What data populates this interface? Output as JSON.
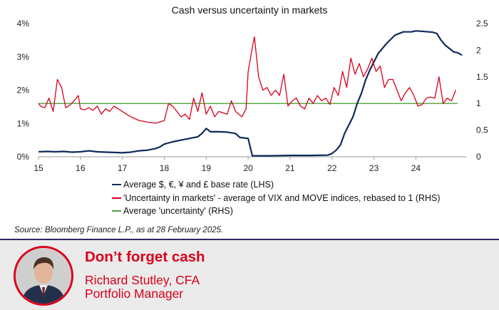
{
  "chart_data": {
    "type": "line",
    "title": "Cash versus uncertainty in markets",
    "x_ticks": [
      "15",
      "16",
      "17",
      "18",
      "19",
      "20",
      "21",
      "22",
      "23",
      "24"
    ],
    "x_tick_values": [
      2015,
      2016,
      2017,
      2018,
      2019,
      2020,
      2021,
      2022,
      2023,
      2024
    ],
    "xlim": [
      2015,
      2025.2
    ],
    "y_left": {
      "ticks": [
        "0%",
        "1%",
        "2%",
        "3%",
        "4%"
      ],
      "tick_values": [
        0,
        1,
        2,
        3,
        4
      ],
      "ylim": [
        0,
        4
      ]
    },
    "y_right": {
      "ticks": [
        "0",
        "0.5",
        "1",
        "1.5",
        "2",
        "2.5"
      ],
      "tick_values": [
        0,
        0.5,
        1,
        1.5,
        2,
        2.5
      ],
      "ylim": [
        0,
        2.5
      ]
    },
    "series": [
      {
        "name": "Average $, €, ¥ and £ base rate (LHS)",
        "axis": "left",
        "color": "#0d2b5a",
        "points": [
          [
            2015.0,
            0.15
          ],
          [
            2015.2,
            0.16
          ],
          [
            2015.4,
            0.15
          ],
          [
            2015.6,
            0.16
          ],
          [
            2015.8,
            0.14
          ],
          [
            2016.0,
            0.15
          ],
          [
            2016.2,
            0.18
          ],
          [
            2016.4,
            0.15
          ],
          [
            2016.6,
            0.14
          ],
          [
            2016.8,
            0.13
          ],
          [
            2017.0,
            0.12
          ],
          [
            2017.2,
            0.14
          ],
          [
            2017.4,
            0.18
          ],
          [
            2017.6,
            0.2
          ],
          [
            2017.8,
            0.25
          ],
          [
            2017.9,
            0.3
          ],
          [
            2018.0,
            0.38
          ],
          [
            2018.2,
            0.45
          ],
          [
            2018.4,
            0.5
          ],
          [
            2018.6,
            0.55
          ],
          [
            2018.8,
            0.6
          ],
          [
            2018.9,
            0.7
          ],
          [
            2019.0,
            0.85
          ],
          [
            2019.1,
            0.75
          ],
          [
            2019.3,
            0.75
          ],
          [
            2019.5,
            0.74
          ],
          [
            2019.7,
            0.7
          ],
          [
            2019.8,
            0.58
          ],
          [
            2020.0,
            0.55
          ],
          [
            2020.1,
            0.03
          ],
          [
            2020.5,
            0.03
          ],
          [
            2021.0,
            0.04
          ],
          [
            2021.5,
            0.04
          ],
          [
            2021.9,
            0.05
          ],
          [
            2022.0,
            0.1
          ],
          [
            2022.1,
            0.2
          ],
          [
            2022.2,
            0.35
          ],
          [
            2022.3,
            0.7
          ],
          [
            2022.5,
            1.2
          ],
          [
            2022.6,
            1.6
          ],
          [
            2022.7,
            1.9
          ],
          [
            2022.8,
            2.3
          ],
          [
            2022.9,
            2.6
          ],
          [
            2023.0,
            2.85
          ],
          [
            2023.1,
            3.1
          ],
          [
            2023.3,
            3.4
          ],
          [
            2023.5,
            3.65
          ],
          [
            2023.7,
            3.75
          ],
          [
            2023.9,
            3.75
          ],
          [
            2024.0,
            3.78
          ],
          [
            2024.2,
            3.76
          ],
          [
            2024.4,
            3.74
          ],
          [
            2024.5,
            3.7
          ],
          [
            2024.6,
            3.5
          ],
          [
            2024.7,
            3.35
          ],
          [
            2024.8,
            3.25
          ],
          [
            2024.9,
            3.15
          ],
          [
            2025.0,
            3.12
          ],
          [
            2025.1,
            3.05
          ]
        ]
      },
      {
        "name": "'Uncertainty in markets' - average of VIX and MOVE indices, rebased to 1 (RHS)",
        "axis": "right",
        "color": "#d9001b",
        "points": [
          [
            2015.0,
            1.0
          ],
          [
            2015.05,
            0.95
          ],
          [
            2015.15,
            0.92
          ],
          [
            2015.25,
            1.1
          ],
          [
            2015.35,
            0.85
          ],
          [
            2015.45,
            1.45
          ],
          [
            2015.55,
            1.3
          ],
          [
            2015.65,
            0.92
          ],
          [
            2015.75,
            0.97
          ],
          [
            2015.85,
            1.05
          ],
          [
            2015.95,
            1.15
          ],
          [
            2016.0,
            0.9
          ],
          [
            2016.1,
            0.88
          ],
          [
            2016.2,
            0.92
          ],
          [
            2016.3,
            0.87
          ],
          [
            2016.4,
            0.95
          ],
          [
            2016.5,
            0.8
          ],
          [
            2016.6,
            0.9
          ],
          [
            2016.7,
            0.85
          ],
          [
            2016.8,
            0.95
          ],
          [
            2016.9,
            0.9
          ],
          [
            2017.0,
            0.85
          ],
          [
            2017.2,
            0.75
          ],
          [
            2017.4,
            0.68
          ],
          [
            2017.6,
            0.65
          ],
          [
            2017.8,
            0.63
          ],
          [
            2018.0,
            0.68
          ],
          [
            2018.1,
            1.0
          ],
          [
            2018.2,
            0.95
          ],
          [
            2018.3,
            0.85
          ],
          [
            2018.4,
            0.75
          ],
          [
            2018.5,
            0.8
          ],
          [
            2018.6,
            0.7
          ],
          [
            2018.7,
            1.1
          ],
          [
            2018.8,
            0.85
          ],
          [
            2018.9,
            1.2
          ],
          [
            2019.0,
            0.8
          ],
          [
            2019.1,
            0.95
          ],
          [
            2019.2,
            0.75
          ],
          [
            2019.3,
            0.85
          ],
          [
            2019.5,
            0.8
          ],
          [
            2019.6,
            1.05
          ],
          [
            2019.7,
            0.85
          ],
          [
            2019.85,
            0.75
          ],
          [
            2019.95,
            0.9
          ],
          [
            2020.0,
            1.6
          ],
          [
            2020.1,
            2.05
          ],
          [
            2020.15,
            2.25
          ],
          [
            2020.25,
            1.5
          ],
          [
            2020.35,
            1.25
          ],
          [
            2020.45,
            1.3
          ],
          [
            2020.55,
            1.15
          ],
          [
            2020.65,
            1.25
          ],
          [
            2020.75,
            1.15
          ],
          [
            2020.85,
            1.55
          ],
          [
            2020.95,
            0.95
          ],
          [
            2021.05,
            1.05
          ],
          [
            2021.15,
            1.1
          ],
          [
            2021.25,
            0.95
          ],
          [
            2021.35,
            0.9
          ],
          [
            2021.45,
            1.1
          ],
          [
            2021.55,
            1.0
          ],
          [
            2021.65,
            1.15
          ],
          [
            2021.75,
            1.05
          ],
          [
            2021.85,
            1.1
          ],
          [
            2021.95,
            0.98
          ],
          [
            2022.05,
            1.3
          ],
          [
            2022.15,
            1.15
          ],
          [
            2022.25,
            1.6
          ],
          [
            2022.35,
            1.3
          ],
          [
            2022.45,
            1.85
          ],
          [
            2022.55,
            1.55
          ],
          [
            2022.65,
            1.75
          ],
          [
            2022.75,
            1.5
          ],
          [
            2022.85,
            1.65
          ],
          [
            2022.95,
            1.85
          ],
          [
            2023.05,
            1.6
          ],
          [
            2023.15,
            1.7
          ],
          [
            2023.25,
            1.3
          ],
          [
            2023.35,
            1.45
          ],
          [
            2023.45,
            1.45
          ],
          [
            2023.55,
            1.25
          ],
          [
            2023.65,
            1.05
          ],
          [
            2023.75,
            1.2
          ],
          [
            2023.85,
            1.3
          ],
          [
            2023.95,
            1.15
          ],
          [
            2024.05,
            0.95
          ],
          [
            2024.15,
            0.98
          ],
          [
            2024.25,
            1.1
          ],
          [
            2024.35,
            1.12
          ],
          [
            2024.45,
            1.1
          ],
          [
            2024.55,
            1.5
          ],
          [
            2024.65,
            1.0
          ],
          [
            2024.75,
            1.1
          ],
          [
            2024.85,
            1.05
          ],
          [
            2024.95,
            1.25
          ]
        ]
      },
      {
        "name": "Average 'uncertainty' (RHS)",
        "axis": "right",
        "color": "#4ca33a",
        "points": [
          [
            2015.0,
            1.0
          ],
          [
            2025.0,
            1.0
          ]
        ]
      }
    ],
    "legend_position": "bottom"
  },
  "source": "Source: Bloomberg Finance L.P., as at 28 February 2025.",
  "footer": {
    "headline": "Don’t forget cash",
    "author_name": "Richard Stutley, CFA",
    "author_role": "Portfolio Manager"
  }
}
